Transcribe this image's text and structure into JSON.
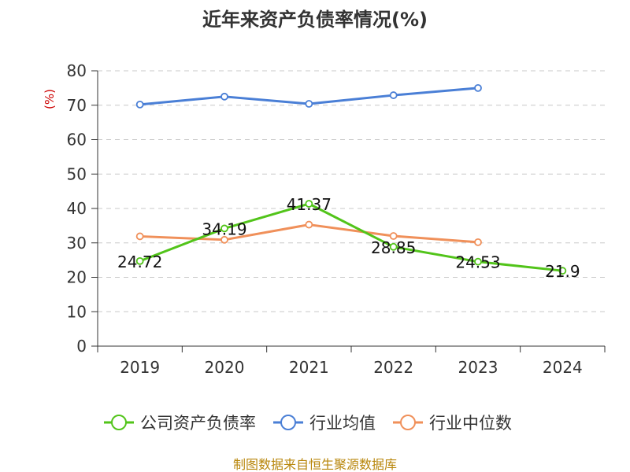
{
  "chart_data": {
    "type": "line",
    "title": "近年来资产负债率情况(%)",
    "ylabel": "(%)",
    "xlabel": "",
    "categories": [
      "2019",
      "2020",
      "2021",
      "2022",
      "2023",
      "2024"
    ],
    "ylim": [
      0,
      80
    ],
    "yticks": [
      0,
      10,
      20,
      30,
      40,
      50,
      60,
      70,
      80
    ],
    "grid": true,
    "legend_position": "bottom",
    "series": [
      {
        "name": "公司资产负债率",
        "color": "#52c41a",
        "values": [
          24.72,
          34.19,
          41.37,
          28.85,
          24.53,
          21.9
        ],
        "labels": [
          "24.72",
          "34.19",
          "41.37",
          "28.85",
          "24.53",
          "21.9"
        ]
      },
      {
        "name": "行业均值",
        "color": "#4a7fd6",
        "values": [
          70.2,
          72.5,
          70.4,
          72.9,
          75.0,
          null
        ]
      },
      {
        "name": "行业中位数",
        "color": "#f0905a",
        "values": [
          31.9,
          30.9,
          35.3,
          32.0,
          30.2,
          null
        ]
      }
    ],
    "source": "制图数据来自恒生聚源数据库"
  }
}
